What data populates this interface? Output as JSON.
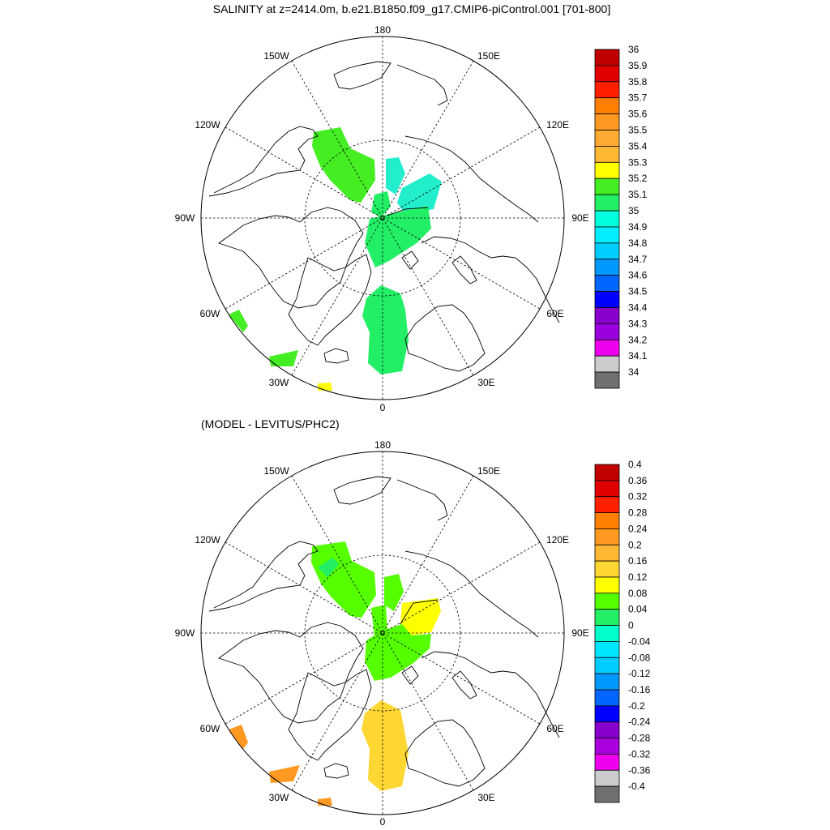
{
  "top_title": "SALINITY at z=2414.0m, b.e21.B1850.f09_g17.CMIP6-piControl.001 [701-800]",
  "bottom_title": "(MODEL - LEVITUS/PHC2)",
  "longitude_labels": {
    "n180": "180",
    "w150": "150W",
    "e150": "150E",
    "w120": "120W",
    "e120": "120E",
    "w90": "90W",
    "e90": "90E",
    "w60": "60W",
    "e60": "60E",
    "w30": "30W",
    "e30": "30E",
    "s0": "0"
  },
  "map": {
    "projection": "north-polar-stereographic",
    "grid_lines": "dashed, every 30 degrees longitude; latitude circles",
    "colors": {
      "green_35_1": "#44ee22",
      "green_35": "#22ee66",
      "aqua_34_9": "#22eecc",
      "yellow": "#ffff00",
      "orange": "#ff9922",
      "lightorange": "#ffd733",
      "green_anom": "#55ff00"
    }
  },
  "top_colorbar": {
    "labels": [
      "36",
      "35.9",
      "35.8",
      "35.7",
      "35.6",
      "35.5",
      "35.4",
      "35.3",
      "35.2",
      "35.1",
      "35",
      "34.9",
      "34.8",
      "34.7",
      "34.6",
      "34.5",
      "34.4",
      "34.3",
      "34.2",
      "34.1",
      "34"
    ],
    "colors": [
      "#c00000",
      "#e00000",
      "#ff2000",
      "#ff8000",
      "#ff9922",
      "#ffaa33",
      "#ffb833",
      "#ffff00",
      "#44ee22",
      "#22ee66",
      "#00ffdd",
      "#00eeff",
      "#00ccff",
      "#0099ff",
      "#0066ff",
      "#0000ff",
      "#8800cc",
      "#9900dd",
      "#ee00ee",
      "#cccccc",
      "#707070"
    ]
  },
  "bottom_colorbar": {
    "labels": [
      "0.4",
      "0.36",
      "0.32",
      "0.28",
      "0.24",
      "0.2",
      "0.16",
      "0.12",
      "0.08",
      "0.04",
      "0",
      "-0.04",
      "-0.08",
      "-0.12",
      "-0.16",
      "-0.2",
      "-0.24",
      "-0.28",
      "-0.32",
      "-0.36",
      "-0.4"
    ],
    "colors": [
      "#c00000",
      "#e00000",
      "#ff2000",
      "#ff8000",
      "#ff9922",
      "#ffb833",
      "#ffd733",
      "#ffff00",
      "#55ff00",
      "#22ee66",
      "#00ffcc",
      "#00e6ff",
      "#00ccff",
      "#0099ff",
      "#0066ff",
      "#0000ff",
      "#8800cc",
      "#aa00dd",
      "#ee00ee",
      "#cccccc",
      "#707070"
    ]
  }
}
